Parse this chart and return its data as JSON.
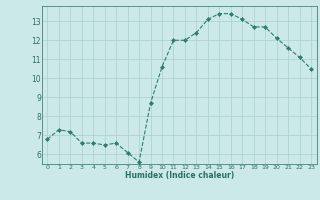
{
  "x": [
    0,
    1,
    2,
    3,
    4,
    5,
    6,
    7,
    8,
    9,
    10,
    11,
    12,
    13,
    14,
    15,
    16,
    17,
    18,
    19,
    20,
    21,
    22,
    23
  ],
  "y": [
    6.8,
    7.3,
    7.2,
    6.6,
    6.6,
    6.5,
    6.6,
    6.1,
    5.6,
    8.7,
    10.6,
    12.0,
    12.0,
    12.4,
    13.1,
    13.4,
    13.4,
    13.1,
    12.7,
    12.7,
    12.1,
    11.6,
    11.1,
    10.5
  ],
  "xlabel": "Humidex (Indice chaleur)",
  "xlim": [
    -0.5,
    23.5
  ],
  "ylim": [
    5.5,
    13.8
  ],
  "yticks": [
    6,
    7,
    8,
    9,
    10,
    11,
    12,
    13
  ],
  "xticks": [
    0,
    1,
    2,
    3,
    4,
    5,
    6,
    7,
    8,
    9,
    10,
    11,
    12,
    13,
    14,
    15,
    16,
    17,
    18,
    19,
    20,
    21,
    22,
    23
  ],
  "line_color": "#2e7d6e",
  "marker_color": "#2e7d6e",
  "bg_color": "#cce9e9",
  "grid_color": "#aacfcf",
  "text_color": "#2e6e62"
}
